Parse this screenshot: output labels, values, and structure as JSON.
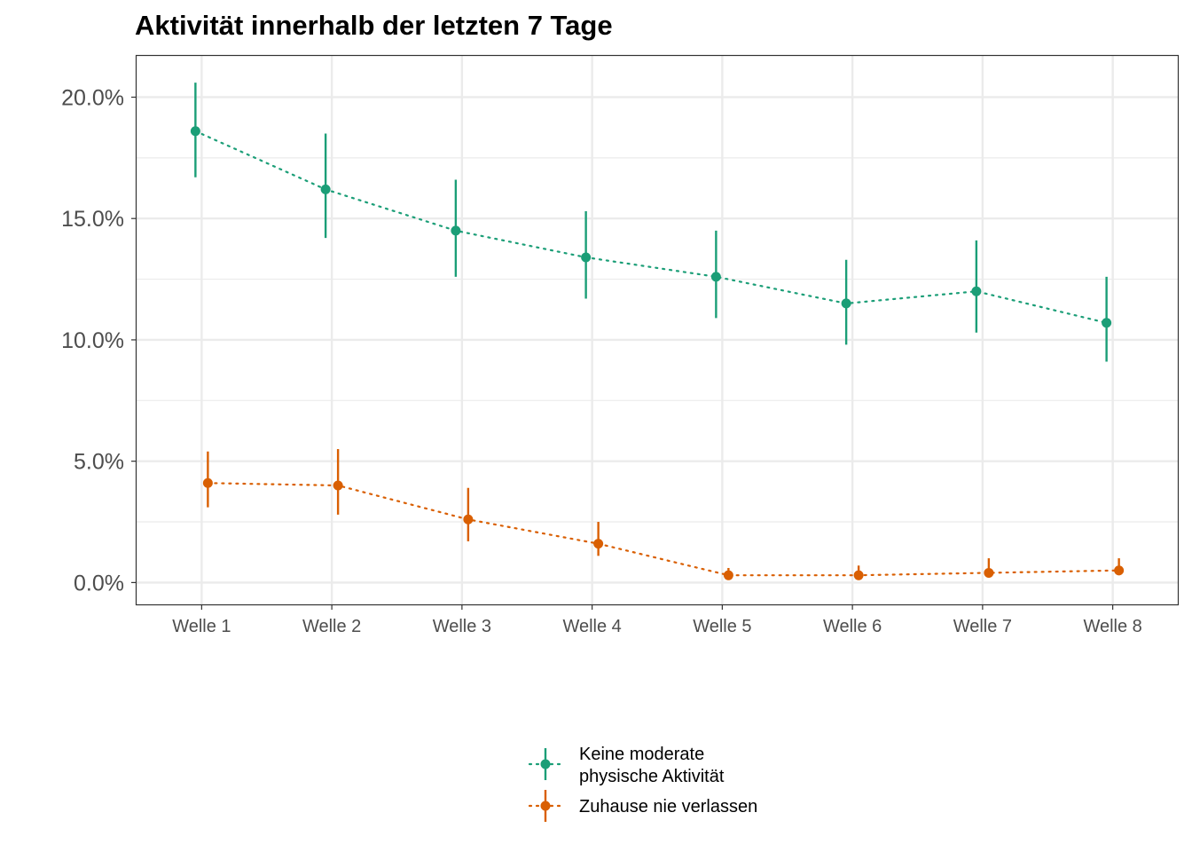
{
  "chart_data": {
    "type": "line",
    "title": "Aktivität innerhalb der letzten 7 Tage",
    "xlabel": "",
    "ylabel": "",
    "categories": [
      "Welle 1",
      "Welle 2",
      "Welle 3",
      "Welle 4",
      "Welle 5",
      "Welle 6",
      "Welle 7",
      "Welle 8"
    ],
    "ylim": [
      -0.9,
      21.7
    ],
    "yticks": [
      0,
      5,
      10,
      15,
      20
    ],
    "ytick_labels": [
      "0.0%",
      "5.0%",
      "10.0%",
      "15.0%",
      "20.0%"
    ],
    "grid": true,
    "legend_position": "bottom",
    "series": [
      {
        "name": "Keine moderate physische Aktivität",
        "name_lines": [
          "Keine moderate",
          "physische Aktivität"
        ],
        "color": "#1b9e77",
        "values": [
          18.6,
          16.2,
          14.5,
          13.4,
          12.6,
          11.5,
          12.0,
          10.7
        ],
        "lower": [
          16.7,
          14.2,
          12.6,
          11.7,
          10.9,
          9.8,
          10.3,
          9.1
        ],
        "upper": [
          20.6,
          18.5,
          16.6,
          15.3,
          14.5,
          13.3,
          14.1,
          12.6
        ]
      },
      {
        "name": "Zuhause nie verlassen",
        "name_lines": [
          "Zuhause nie verlassen"
        ],
        "color": "#d95f02",
        "values": [
          4.1,
          4.0,
          2.6,
          1.6,
          0.3,
          0.3,
          0.4,
          0.5
        ],
        "lower": [
          3.1,
          2.8,
          1.7,
          1.1,
          0.1,
          0.1,
          0.2,
          0.3
        ],
        "upper": [
          5.4,
          5.5,
          3.9,
          2.5,
          0.6,
          0.7,
          1.0,
          1.0
        ]
      }
    ]
  }
}
